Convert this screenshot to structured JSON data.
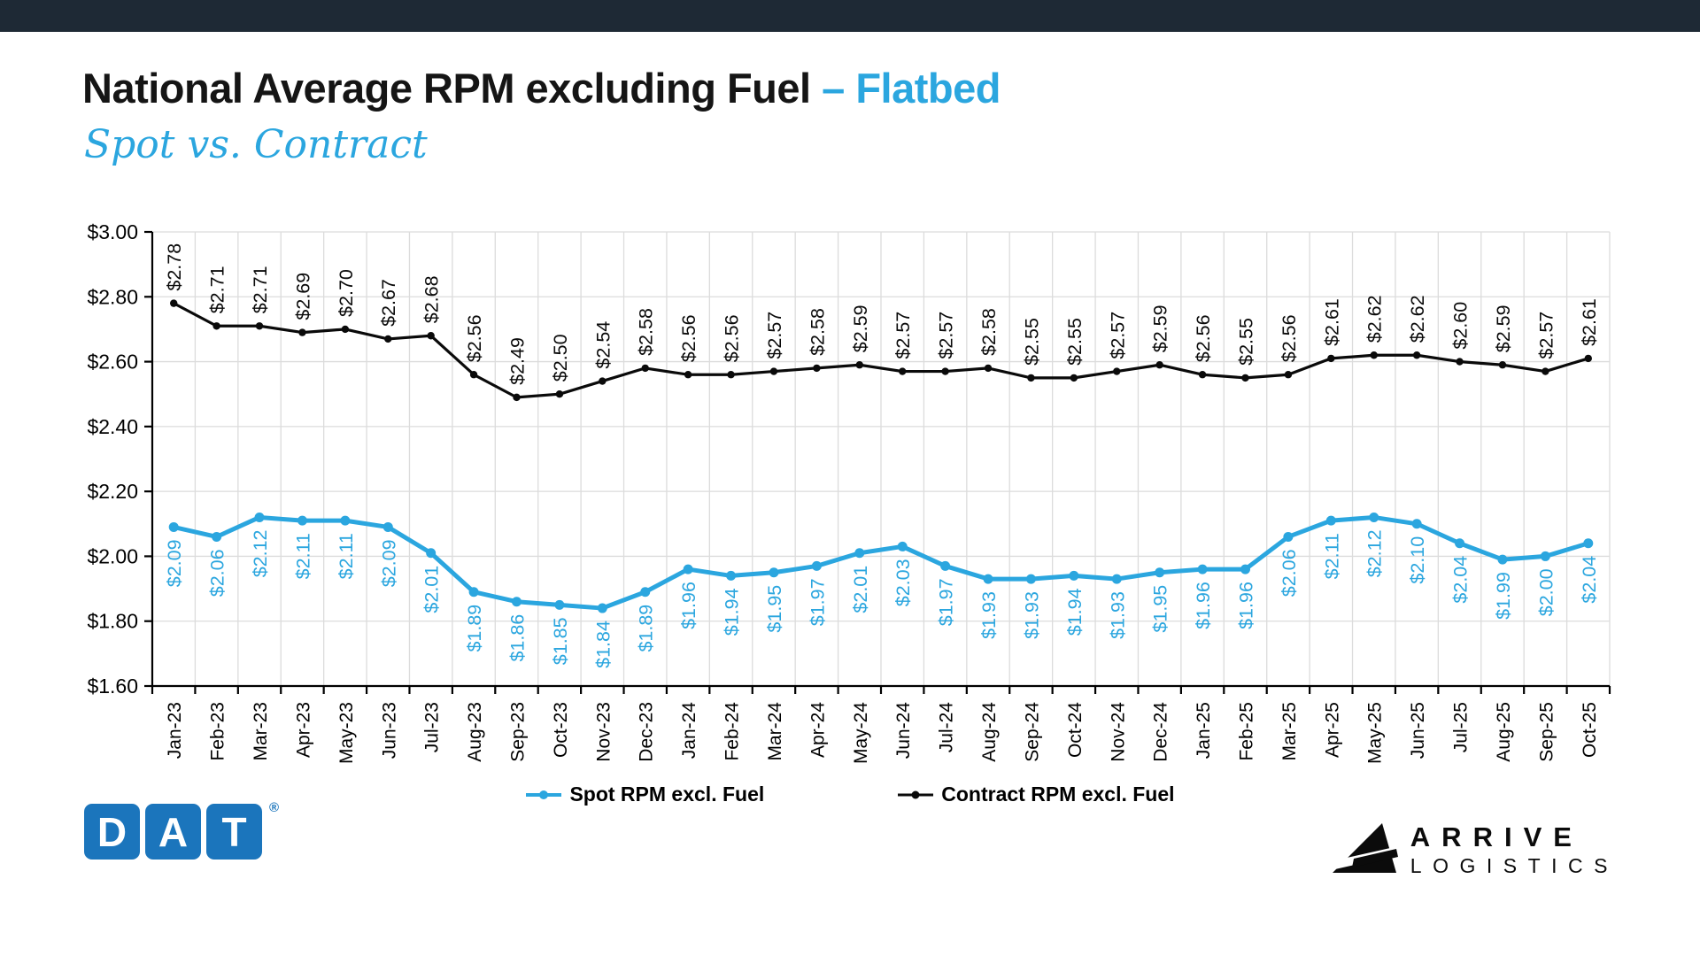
{
  "header": {
    "title_main": "National Average RPM excluding Fuel ",
    "title_accent": "– Flatbed",
    "subtitle": "Spot vs. Contract"
  },
  "colors": {
    "accent_blue": "#2BA6DF",
    "spot_line": "#2BA6DF",
    "contract_line": "#0A0A0A",
    "top_bar": "#1E2935",
    "grid": "#DCDCDC",
    "axis": "#000000",
    "dat_blue": "#1B75BC"
  },
  "legend": {
    "spot": {
      "label": "Spot RPM excl. Fuel"
    },
    "contract": {
      "label": "Contract RPM excl. Fuel"
    }
  },
  "logos": {
    "dat": {
      "letters": {
        "0": "D",
        "1": "A",
        "2": "T"
      },
      "reg": "®"
    },
    "arrive": {
      "line1": "ARRIVE",
      "line2": "LOGISTICS"
    }
  },
  "chart_data": {
    "type": "line",
    "title": "National Average RPM excluding Fuel – Flatbed (Spot vs. Contract)",
    "xlabel": "",
    "ylabel": "",
    "ylim": [
      1.6,
      3.0
    ],
    "ytick_step": 0.2,
    "ytick_labels": [
      "$1.60",
      "$1.80",
      "$2.00",
      "$2.20",
      "$2.40",
      "$2.60",
      "$2.80",
      "$3.00"
    ],
    "grid": true,
    "legend_position": "bottom",
    "data_label_format": "$X.XX",
    "categories": [
      "Jan-23",
      "Feb-23",
      "Mar-23",
      "Apr-23",
      "May-23",
      "Jun-23",
      "Jul-23",
      "Aug-23",
      "Sep-23",
      "Oct-23",
      "Nov-23",
      "Dec-23",
      "Jan-24",
      "Feb-24",
      "Mar-24",
      "Apr-24",
      "May-24",
      "Jun-24",
      "Jul-24",
      "Aug-24",
      "Sep-24",
      "Oct-24",
      "Nov-24",
      "Dec-24",
      "Jan-25",
      "Feb-25",
      "Mar-25",
      "Apr-25",
      "May-25",
      "Jun-25",
      "Jul-25",
      "Aug-25",
      "Sep-25",
      "Oct-25"
    ],
    "series": [
      {
        "name": "Spot RPM excl. Fuel",
        "color": "#2BA6DF",
        "values": [
          2.09,
          2.06,
          2.12,
          2.11,
          2.11,
          2.09,
          2.01,
          1.89,
          1.86,
          1.85,
          1.84,
          1.89,
          1.96,
          1.94,
          1.95,
          1.97,
          2.01,
          2.03,
          1.97,
          1.93,
          1.93,
          1.94,
          1.93,
          1.95,
          1.96,
          1.96,
          2.06,
          2.11,
          2.12,
          2.1,
          2.04,
          1.99,
          2.0,
          2.04
        ]
      },
      {
        "name": "Contract RPM excl. Fuel",
        "color": "#0A0A0A",
        "values": [
          2.78,
          2.71,
          2.71,
          2.69,
          2.7,
          2.67,
          2.68,
          2.56,
          2.49,
          2.5,
          2.54,
          2.58,
          2.56,
          2.56,
          2.57,
          2.58,
          2.59,
          2.57,
          2.57,
          2.58,
          2.55,
          2.55,
          2.57,
          2.59,
          2.56,
          2.55,
          2.56,
          2.61,
          2.62,
          2.62,
          2.6,
          2.59,
          2.57,
          2.61
        ]
      }
    ]
  }
}
